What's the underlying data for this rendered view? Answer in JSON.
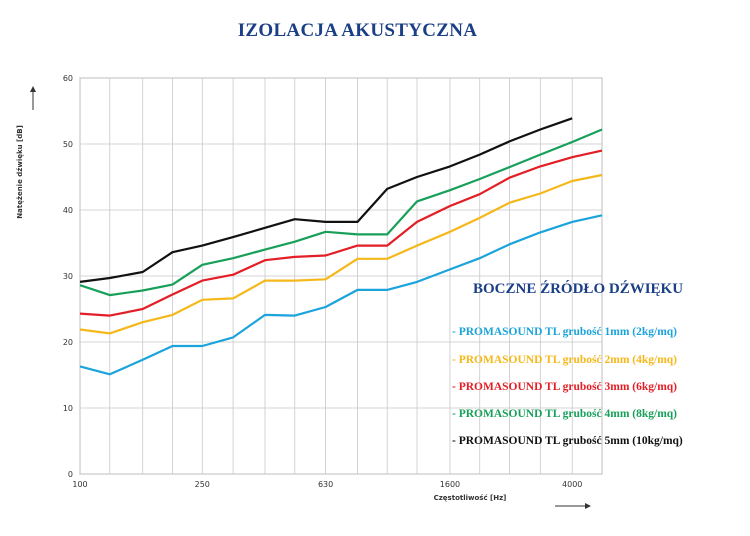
{
  "title": "IZOLACJA AKUSTYCZNA",
  "legend": {
    "title": "BOCZNE ŹRÓDŁO DŹWIĘKU",
    "items": [
      {
        "label": "- PROMASOUND TL grubość 1mm (2kg/mq)",
        "color": "#1ba3dc"
      },
      {
        "label": "- PROMASOUND TL grubość 2mm (4kg/mq)",
        "color": "#f5b81a"
      },
      {
        "label": "- PROMASOUND TL grubość 3mm (6kg/mq)",
        "color": "#e41e26"
      },
      {
        "label": "- PROMASOUND TL grubość 4mm (8kg/mq)",
        "color": "#18a05a"
      },
      {
        "label": "- PROMASOUND TL grubość 5mm (10kg/mq)",
        "color": "#111111"
      }
    ]
  },
  "chart_data": {
    "type": "line",
    "title": "IZOLACJA AKUSTYCZNA",
    "xlabel": "Częstotliwość [Hz]",
    "ylabel": "Natężenie dźwięku [dB]",
    "x_scale": "log",
    "xlim": [
      100,
      5000
    ],
    "ylim": [
      0,
      60
    ],
    "grid": true,
    "legend_position": "right",
    "x_tick_labels": [
      "100",
      "250",
      "630",
      "1600",
      "4000"
    ],
    "x_tick_values": [
      100,
      250,
      630,
      1600,
      4000
    ],
    "y_ticks": [
      0,
      10,
      20,
      30,
      40,
      50,
      60
    ],
    "x": [
      100,
      125,
      160,
      200,
      250,
      315,
      400,
      500,
      630,
      800,
      1000,
      1250,
      1600,
      2000,
      2500,
      3150,
      4000,
      5000
    ],
    "series": [
      {
        "name": "- PROMASOUND TL grubość 1mm (2kg/mq)",
        "color": "#1ba3dc",
        "values": [
          16.3,
          15.1,
          17.3,
          19.4,
          19.4,
          20.7,
          24.1,
          24.0,
          25.3,
          27.9,
          27.9,
          29.1,
          31.0,
          32.7,
          34.8,
          36.6,
          38.2,
          39.2
        ]
      },
      {
        "name": "- PROMASOUND TL grubość 2mm (4kg/mq)",
        "color": "#f5b81a",
        "values": [
          21.9,
          21.3,
          23.0,
          24.1,
          26.4,
          26.6,
          29.3,
          29.3,
          29.5,
          32.6,
          32.6,
          34.6,
          36.7,
          38.8,
          41.1,
          42.5,
          44.4,
          45.3
        ]
      },
      {
        "name": "- PROMASOUND TL grubość 3mm (6kg/mq)",
        "color": "#e41e26",
        "values": [
          24.3,
          24.0,
          25.0,
          27.2,
          29.3,
          30.2,
          32.4,
          32.9,
          33.1,
          34.6,
          34.6,
          38.2,
          40.6,
          42.4,
          44.9,
          46.6,
          48.0,
          49.0
        ]
      },
      {
        "name": "- PROMASOUND TL grubość 4mm (8kg/mq)",
        "color": "#18a05a",
        "values": [
          28.6,
          27.1,
          27.8,
          28.7,
          31.7,
          32.7,
          34.0,
          35.2,
          36.7,
          36.3,
          36.3,
          41.3,
          43.0,
          44.7,
          46.5,
          48.4,
          50.3,
          52.2
        ]
      },
      {
        "name": "- PROMASOUND TL grubość 5mm (10kg/mq)",
        "color": "#111111",
        "values": [
          29.1,
          29.7,
          30.6,
          33.6,
          34.6,
          35.9,
          37.3,
          38.6,
          38.2,
          38.2,
          43.2,
          45.0,
          46.6,
          48.4,
          50.4,
          52.2,
          53.9,
          null
        ]
      }
    ]
  }
}
